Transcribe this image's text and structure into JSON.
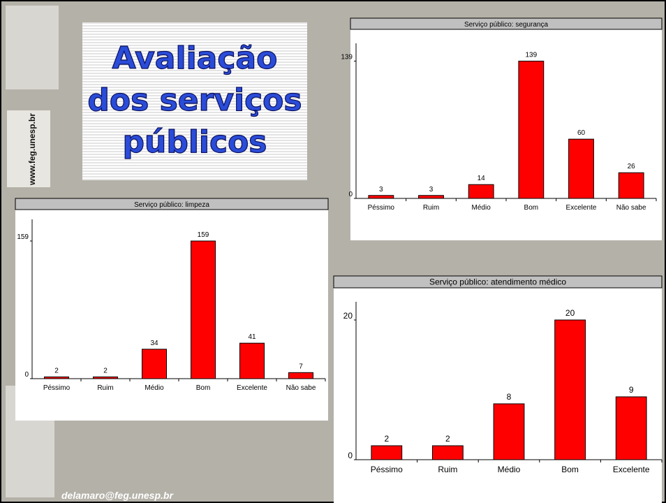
{
  "slide": {
    "title_lines": [
      "Avaliação",
      "dos serviços",
      "públicos"
    ],
    "side_text": "www.feg.unesp.br",
    "footer": "delamaro@feg.unesp.br"
  },
  "chart_data": [
    {
      "type": "bar",
      "title": "Serviço público: segurança",
      "categories": [
        "Péssimo",
        "Ruim",
        "Médio",
        "Bom",
        "Excelente",
        "Não sabe"
      ],
      "values": [
        3,
        3,
        14,
        139,
        60,
        26
      ],
      "color": "#ff0000",
      "ylim": [
        0,
        157
      ],
      "yticks": [
        0,
        139
      ]
    },
    {
      "type": "bar",
      "title": "Serviço público: limpeza",
      "categories": [
        "Péssimo",
        "Ruim",
        "Médio",
        "Bom",
        "Excelente",
        "Não sabe"
      ],
      "values": [
        2,
        2,
        34,
        159,
        41,
        7
      ],
      "color": "#ff0000",
      "ylim": [
        0,
        184
      ],
      "yticks": [
        0,
        159
      ]
    },
    {
      "type": "bar",
      "title": "Serviço público: atendimento médico",
      "categories": [
        "Péssimo",
        "Ruim",
        "Médio",
        "Bom",
        "Excelente"
      ],
      "values": [
        2,
        2,
        8,
        20,
        9
      ],
      "color": "#ff0000",
      "ylim": [
        0,
        22.6
      ],
      "yticks": [
        0,
        20
      ]
    }
  ]
}
